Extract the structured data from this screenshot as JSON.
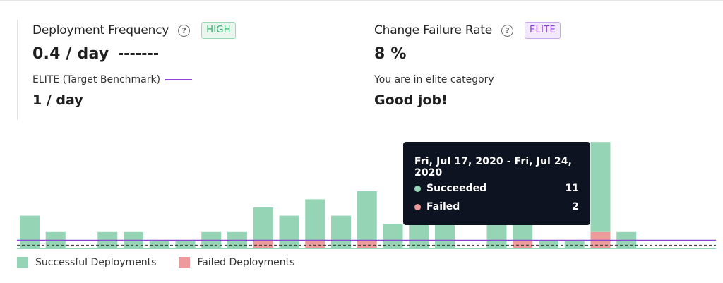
{
  "metrics": {
    "deployment": {
      "title": "Deployment Frequency",
      "help_icon": "?",
      "badge": "HIGH",
      "value": "0.4 / day",
      "benchmark_label": "ELITE (Target Benchmark)",
      "benchmark_value": "1 / day"
    },
    "failure": {
      "title": "Change Failure Rate",
      "help_icon": "?",
      "badge": "ELITE",
      "value": "8 %",
      "category_text": "You are in elite category",
      "message": "Good job!"
    }
  },
  "tooltip": {
    "title": "Fri, Jul 17, 2020 - Fri, Jul 24, 2020",
    "rows": [
      {
        "label": "Succeeded",
        "value": "11"
      },
      {
        "label": "Failed",
        "value": "2"
      }
    ]
  },
  "legend": {
    "successful": "Successful Deployments",
    "failed": "Failed Deployments"
  },
  "colors": {
    "success": "#95d5b5",
    "failed": "#ed9a9a",
    "high_badge": "#3aa86b",
    "elite_badge": "#8a45d6",
    "benchmark_line": "#8a45d6",
    "tooltip_bg": "#0d1321"
  },
  "chart_data": {
    "type": "bar",
    "stacked": true,
    "series": [
      {
        "name": "Successful Deployments",
        "values": [
          4,
          2,
          0,
          2,
          2,
          1,
          1,
          2,
          2,
          4,
          4,
          5,
          4,
          6,
          3,
          3,
          3,
          0,
          3,
          3,
          1,
          1,
          11,
          2
        ]
      },
      {
        "name": "Failed Deployments",
        "values": [
          0,
          0,
          0,
          0,
          0,
          0,
          0,
          0,
          0,
          1,
          0,
          1,
          0,
          1,
          0,
          0,
          0,
          0,
          0,
          1,
          0,
          0,
          2,
          0
        ]
      }
    ],
    "benchmark_value": 1,
    "current_value": 0.4,
    "highlighted_index": 22
  }
}
